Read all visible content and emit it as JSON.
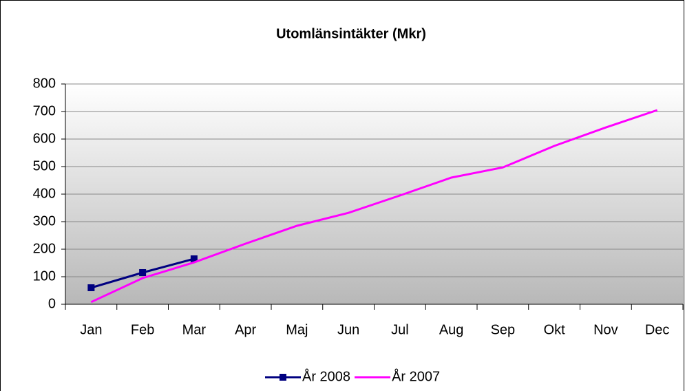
{
  "chart_data": {
    "type": "line",
    "title": "Utomlänsintäkter (Mkr)",
    "categories": [
      "Jan",
      "Feb",
      "Mar",
      "Apr",
      "Maj",
      "Jun",
      "Jul",
      "Aug",
      "Sep",
      "Okt",
      "Nov",
      "Dec"
    ],
    "series": [
      {
        "name": "År 2008",
        "color": "#000080",
        "marker": "square",
        "values": [
          60,
          115,
          165,
          null,
          null,
          null,
          null,
          null,
          null,
          null,
          null,
          null
        ]
      },
      {
        "name": "År 2007",
        "color": "#ff00ff",
        "values": [
          8,
          95,
          152,
          220,
          285,
          332,
          395,
          460,
          497,
          575,
          642,
          705
        ]
      }
    ],
    "ylim": [
      0,
      800
    ],
    "yticks": [
      0,
      100,
      200,
      300,
      400,
      500,
      600,
      700,
      800
    ],
    "grid": true,
    "legend": "bottom"
  }
}
